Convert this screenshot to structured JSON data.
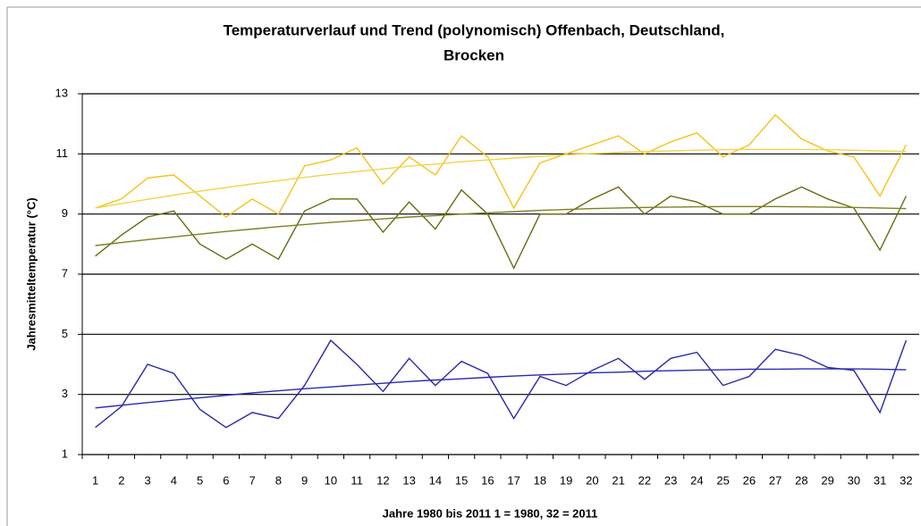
{
  "chart_data": {
    "type": "line",
    "title": [
      "Temperaturverlauf und Trend (polynomisch) Offenbach, Deutschland,",
      "Brocken"
    ],
    "x_label": "Jahre 1980 bis 2011 1 = 1980, 32 = 2011",
    "y_label": "Jahresmitteltemperatur (°C)",
    "categories": [
      1,
      2,
      3,
      4,
      5,
      6,
      7,
      8,
      9,
      10,
      11,
      12,
      13,
      14,
      15,
      16,
      17,
      18,
      19,
      20,
      21,
      22,
      23,
      24,
      25,
      26,
      27,
      28,
      29,
      30,
      31,
      32
    ],
    "ylim": [
      1,
      13
    ],
    "yticks": [
      1,
      3,
      5,
      7,
      9,
      11,
      13
    ],
    "grid": true,
    "series": [
      {
        "color": "#f5c21a",
        "values": [
          9.2,
          9.5,
          10.2,
          10.3,
          9.6,
          8.9,
          9.5,
          9.0,
          10.6,
          10.8,
          11.2,
          10.0,
          10.9,
          10.3,
          11.6,
          10.9,
          9.2,
          10.7,
          11.0,
          11.3,
          11.6,
          11.0,
          11.4,
          11.7,
          10.9,
          11.3,
          12.3,
          11.5,
          11.1,
          10.9,
          9.6,
          11.3
        ]
      },
      {
        "color": "#f2d44c",
        "values": [
          9.2,
          9.35,
          9.49,
          9.63,
          9.76,
          9.88,
          10.0,
          10.11,
          10.22,
          10.32,
          10.41,
          10.5,
          10.59,
          10.66,
          10.74,
          10.8,
          10.86,
          10.92,
          10.97,
          11.01,
          11.05,
          11.08,
          11.1,
          11.12,
          11.14,
          11.15,
          11.15,
          11.15,
          11.14,
          11.12,
          11.1,
          11.08
        ]
      },
      {
        "color": "#6b6a10",
        "values": [
          7.6,
          8.3,
          8.9,
          9.1,
          8.0,
          7.5,
          8.0,
          7.5,
          9.1,
          9.5,
          9.5,
          8.4,
          9.4,
          8.5,
          9.8,
          9.0,
          7.2,
          9.0,
          9.0,
          9.5,
          9.9,
          9.0,
          9.6,
          9.4,
          9.0,
          9.0,
          9.5,
          9.9,
          9.5,
          9.2,
          7.8,
          9.6
        ]
      },
      {
        "color": "#7f7f20",
        "values": [
          7.95,
          8.05,
          8.15,
          8.24,
          8.33,
          8.42,
          8.5,
          8.58,
          8.65,
          8.72,
          8.78,
          8.84,
          8.9,
          8.95,
          9.0,
          9.04,
          9.08,
          9.12,
          9.15,
          9.18,
          9.2,
          9.22,
          9.23,
          9.24,
          9.25,
          9.25,
          9.25,
          9.24,
          9.23,
          9.22,
          9.2,
          9.18
        ]
      },
      {
        "color": "#2a2aa8",
        "values": [
          1.9,
          2.6,
          4.0,
          3.7,
          2.5,
          1.9,
          2.4,
          2.2,
          3.3,
          4.8,
          4.0,
          3.1,
          4.2,
          3.3,
          4.1,
          3.7,
          2.2,
          3.6,
          3.3,
          3.8,
          4.2,
          3.5,
          4.2,
          4.4,
          3.3,
          3.6,
          4.5,
          4.3,
          3.9,
          3.8,
          2.4,
          4.8
        ]
      },
      {
        "color": "#2a2ab0",
        "values": [
          2.55,
          2.64,
          2.73,
          2.81,
          2.89,
          2.97,
          3.05,
          3.12,
          3.19,
          3.25,
          3.31,
          3.37,
          3.43,
          3.48,
          3.52,
          3.57,
          3.61,
          3.65,
          3.68,
          3.72,
          3.74,
          3.77,
          3.79,
          3.81,
          3.82,
          3.84,
          3.84,
          3.85,
          3.85,
          3.85,
          3.84,
          3.82
        ]
      }
    ]
  }
}
